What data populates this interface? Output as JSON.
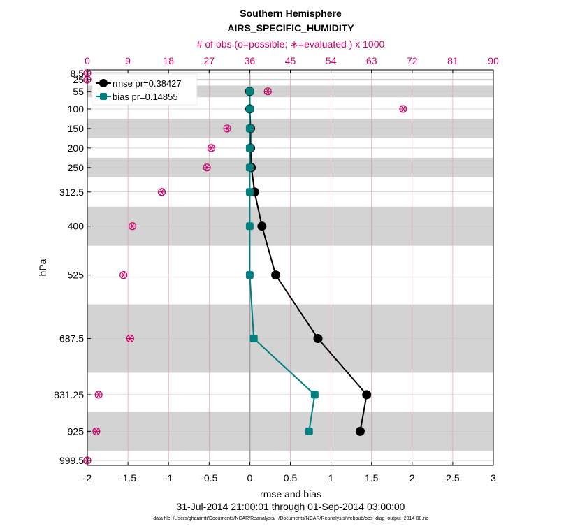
{
  "chart_data": {
    "type": "line",
    "title": "Southern Hemisphere",
    "subtitle": "AIRS_SPECIFIC_HUMIDITY",
    "top_axis_label": "# of obs (o=possible; ∗=evaluated ) x 1000",
    "xlabel": "rmse and bias",
    "ylabel": "hPa",
    "date_range": "31-Jul-2014 21:00:01 through 01-Sep-2014 03:00:00",
    "data_file": "data file: /Users/gharamti/Documents/NCAR/Reanalysis/~/Documents/NCAR/Reanalysis/webpub/obs_diag_output_2014-08.nc",
    "xlim": [
      -2,
      3
    ],
    "xticks": [
      "-2",
      "-1.5",
      "-1",
      "-0.5",
      "0",
      "0.5",
      "1",
      "1.5",
      "2",
      "2.5",
      "3"
    ],
    "top_xlim": [
      0,
      90
    ],
    "top_ticks": [
      "0",
      "9",
      "18",
      "27",
      "36",
      "45",
      "54",
      "63",
      "72",
      "81",
      "90"
    ],
    "ylim": [
      1012,
      0
    ],
    "levels": [
      8.5,
      25,
      55,
      100,
      150,
      200,
      250,
      312.5,
      400,
      525,
      687.5,
      831.25,
      925,
      999.5
    ],
    "level_labels": [
      "8.5",
      "25",
      "55",
      "100",
      "150",
      "200",
      "250",
      "312.5",
      "400",
      "525",
      "687.5",
      "831.25",
      "925",
      "999.5"
    ],
    "shaded_bands": [
      [
        6,
        8
      ],
      [
        23,
        27
      ],
      [
        40,
        70
      ],
      [
        125,
        175
      ],
      [
        225,
        275
      ],
      [
        350,
        450
      ],
      [
        600,
        775
      ],
      [
        875,
        975
      ]
    ],
    "series": [
      {
        "name": "rmse",
        "legend": "rmse pr=0.38427",
        "color": "#000000",
        "marker": "circle",
        "levels": [
          55,
          100,
          150,
          200,
          250,
          312.5,
          400,
          525,
          687.5,
          831.25,
          925
        ],
        "values": [
          0.0,
          0.0,
          0.01,
          0.01,
          0.02,
          0.06,
          0.15,
          0.32,
          0.84,
          1.44,
          1.36
        ]
      },
      {
        "name": "bias",
        "legend": "bias pr=0.14855",
        "color": "#008080",
        "marker": "square",
        "levels": [
          55,
          100,
          150,
          200,
          250,
          312.5,
          400,
          525,
          687.5,
          831.25,
          925
        ],
        "values": [
          0.0,
          0.0,
          0.0,
          0.0,
          0.0,
          0.0,
          0.0,
          0.0,
          0.05,
          0.8,
          0.73
        ]
      },
      {
        "name": "obs_evaluated",
        "legend": "",
        "color": "#cc0066",
        "marker": "asterisk-circle",
        "axis": "top",
        "unit": "x 1000",
        "levels": [
          8.5,
          25,
          55,
          100,
          150,
          200,
          250,
          312.5,
          400,
          525,
          687.5,
          831.25,
          925,
          999.5
        ],
        "values": [
          0,
          0,
          40,
          70,
          31,
          27.5,
          26.5,
          16.5,
          10,
          8,
          9.5,
          2.5,
          2,
          0
        ]
      }
    ],
    "legend_location": "top-left",
    "grid": true
  }
}
